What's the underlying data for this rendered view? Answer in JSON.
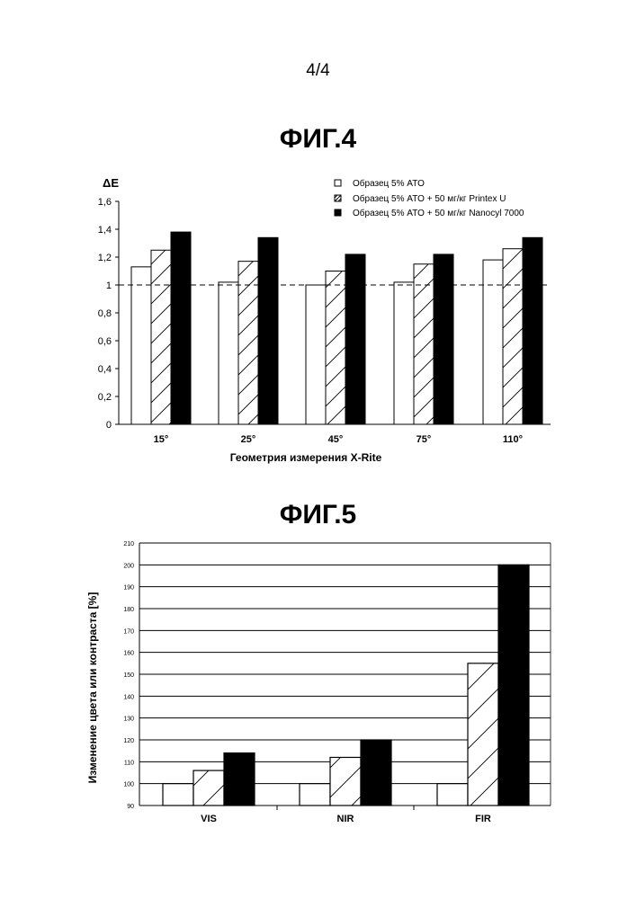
{
  "page_number": "4/4",
  "chart_data": [
    {
      "type": "bar",
      "title": "ФИГ.4",
      "ylabel": "ΔE",
      "xlabel": "Геометрия измерения X-Rite",
      "categories": [
        "15°",
        "25°",
        "45°",
        "75°",
        "110°"
      ],
      "ylim": [
        0,
        1.6
      ],
      "yticks": [
        "0",
        "0,2",
        "0,4",
        "0,6",
        "0,8",
        "1",
        "1,2",
        "1,4",
        "1,6"
      ],
      "grid": false,
      "reference_line": 1,
      "legend_position": "top-right",
      "series": [
        {
          "name": "Образец 5% ATO",
          "pattern": "empty",
          "values": [
            1.13,
            1.02,
            1.0,
            1.02,
            1.18
          ]
        },
        {
          "name": "Образец 5% ATO + 50 мг/кг Printex U",
          "pattern": "hatched",
          "values": [
            1.25,
            1.17,
            1.1,
            1.15,
            1.26
          ]
        },
        {
          "name": "Образец 5% ATO + 50 мг/кг Nanocyl 7000",
          "pattern": "solid",
          "values": [
            1.38,
            1.34,
            1.22,
            1.22,
            1.34
          ]
        }
      ]
    },
    {
      "type": "bar",
      "title": "ФИГ.5",
      "ylabel": "Изменение цвета или контраста [%]",
      "xlabel": "",
      "categories": [
        "VIS",
        "NIR",
        "FIR"
      ],
      "ylim": [
        90,
        210
      ],
      "yticks": [
        "90",
        "100",
        "110",
        "120",
        "130",
        "140",
        "150",
        "160",
        "170",
        "180",
        "190",
        "200",
        "210"
      ],
      "grid": true,
      "series": [
        {
          "pattern": "empty",
          "values": [
            100,
            100,
            100
          ]
        },
        {
          "pattern": "hatched",
          "values": [
            106,
            112,
            155
          ]
        },
        {
          "pattern": "solid",
          "values": [
            114,
            120,
            200
          ]
        }
      ]
    }
  ]
}
